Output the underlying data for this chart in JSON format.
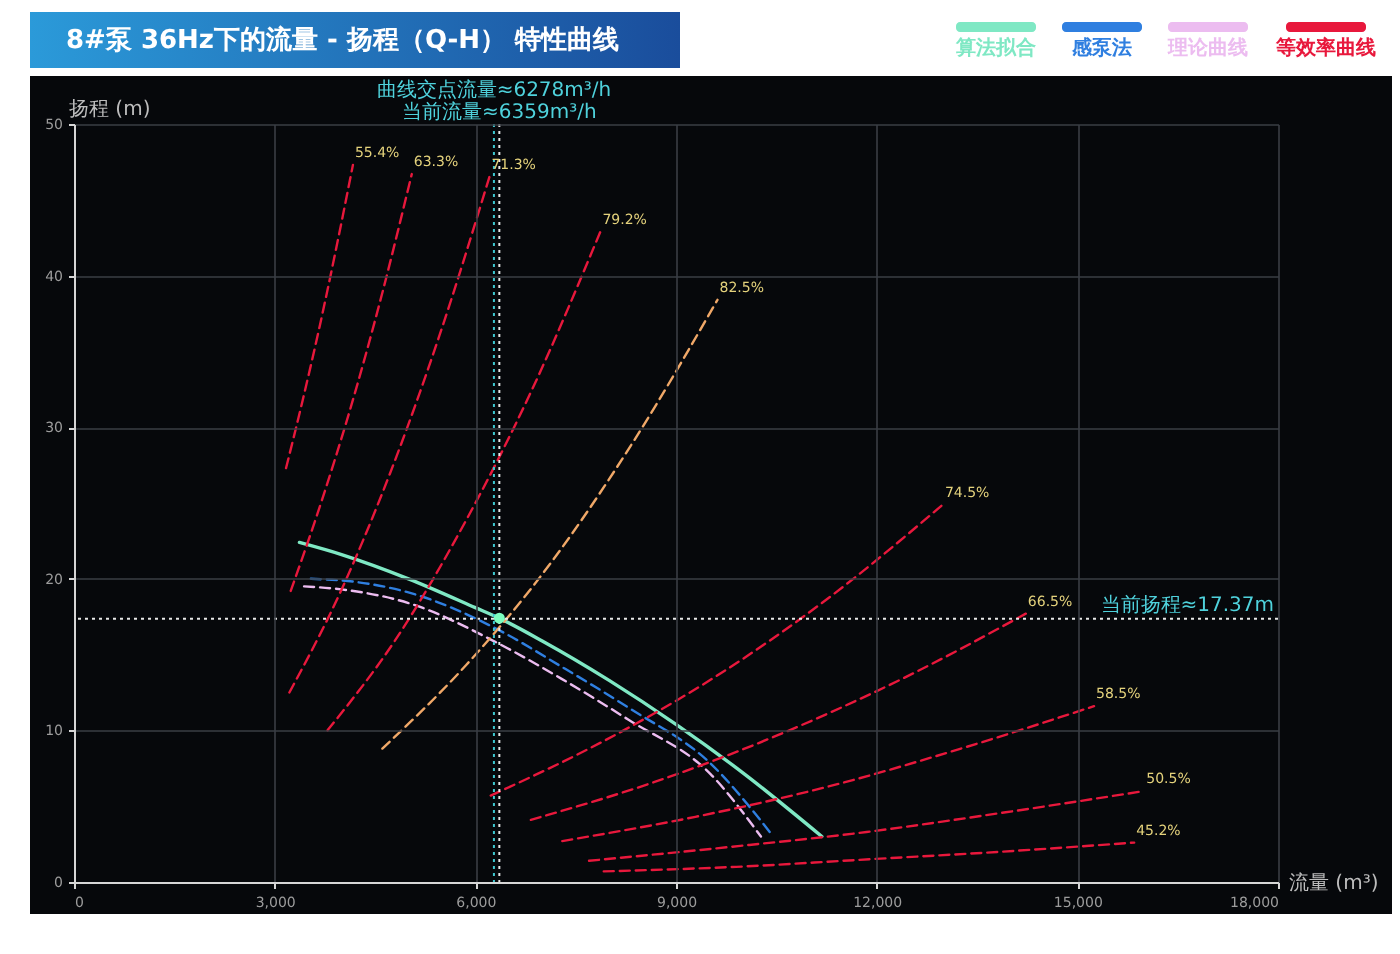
{
  "chart_data": {
    "type": "line",
    "title": "8#泵 36Hz下的流量 - 扬程（Q-H） 特性曲线",
    "xlabel": "流量 (m³)",
    "ylabel": "扬程 (m)",
    "xlim": [
      0,
      18000
    ],
    "xticks": [
      0,
      {
        "value": 3000,
        "label": "3,000"
      },
      {
        "value": 6000,
        "label": "6,000"
      },
      {
        "value": 9000,
        "label": "9,000"
      },
      {
        "value": 12000,
        "label": "12,000"
      },
      {
        "value": 15000,
        "label": "15,000"
      },
      {
        "value": 18000,
        "label": "18,000"
      }
    ],
    "ylim": [
      0,
      50
    ],
    "yticks": [
      0,
      10,
      20,
      30,
      40,
      50
    ],
    "grid": true,
    "legend": "top right",
    "series": [
      {
        "name": "算法拟合",
        "color": "#7fe8c4",
        "line_style": "solid",
        "x": [
          3370,
          4000,
          5000,
          6000,
          6359,
          7000,
          8000,
          9000,
          10000,
          11180
        ],
        "values": [
          22.4,
          21.6,
          20.0,
          18.1,
          17.4,
          15.9,
          13.3,
          10.4,
          7.2,
          3.0
        ]
      },
      {
        "name": "感泵法",
        "color": "#2f7fe0",
        "line_style": "dashed",
        "x": [
          3540,
          4200,
          5000,
          6359,
          7290,
          8290,
          9520,
          10420
        ],
        "values": [
          20.0,
          19.8,
          19.1,
          16.6,
          14.2,
          11.5,
          7.8,
          3.2
        ]
      },
      {
        "name": "理论曲线",
        "color": "#ecbcf0",
        "line_style": "dashed",
        "x": [
          3440,
          4000,
          5000,
          6359,
          7290,
          8290,
          9520,
          10270
        ],
        "values": [
          19.5,
          19.3,
          18.4,
          15.7,
          13.4,
          10.7,
          7.1,
          3.0
        ]
      },
      {
        "name": "等效率曲线",
        "color": "#e8183c",
        "line_style": "dashed",
        "x": [
          3170,
          3420,
          3670,
          3920,
          4170
        ],
        "values": [
          27.3,
          31.8,
          36.6,
          41.8,
          47.3
        ]
      },
      {
        "color": "#e8183c",
        "line_style": "dashed",
        "x": [
          3240,
          3700,
          4150,
          4600,
          5050
        ],
        "values": [
          19.2,
          25.1,
          31.5,
          38.7,
          46.7
        ]
      },
      {
        "color": "#e8183c",
        "line_style": "dashed",
        "x": [
          3220,
          3970,
          4720,
          5460,
          6210
        ],
        "values": [
          12.5,
          19.0,
          26.9,
          36.0,
          46.5
        ]
      },
      {
        "color": "#e8183c",
        "line_style": "dashed",
        "x": [
          3790,
          4810,
          5830,
          6850,
          7870
        ],
        "values": [
          10.0,
          16.0,
          23.6,
          32.5,
          42.9
        ]
      },
      {
        "color": "#e8183c",
        "line_style": "dashed",
        "x": [
          6230,
          7920,
          9610,
          11300,
          12990
        ],
        "values": [
          5.7,
          9.3,
          13.6,
          18.8,
          24.9
        ]
      },
      {
        "color": "#e8183c",
        "line_style": "dashed",
        "x": [
          6830,
          8680,
          10530,
          12380,
          14230
        ],
        "values": [
          4.1,
          6.6,
          9.7,
          13.4,
          17.7
        ]
      },
      {
        "color": "#e8183c",
        "line_style": "dashed",
        "x": [
          7300,
          9290,
          11280,
          13260,
          15250
        ],
        "values": [
          2.7,
          4.3,
          6.3,
          8.8,
          11.6
        ]
      },
      {
        "color": "#e8183c",
        "line_style": "dashed",
        "x": [
          7700,
          9780,
          11850,
          13930,
          16000
        ],
        "values": [
          1.4,
          2.3,
          3.3,
          4.6,
          6.0
        ]
      },
      {
        "color": "#e8183c",
        "line_style": "dashed",
        "x": [
          7920,
          9900,
          11890,
          13870,
          15850
        ],
        "values": [
          0.7,
          1.0,
          1.5,
          2.0,
          2.6
        ]
      },
      {
        "color": "#f0a868",
        "line_style": "dashed",
        "x": [
          4610,
          5860,
          7120,
          8370,
          9620
        ],
        "values": [
          8.8,
          14.3,
          21.0,
          29.1,
          38.4
        ]
      },
      {
        "type": "scatter",
        "color": "#7dffc0",
        "marker": "circle",
        "x": [
          6359
        ],
        "values": [
          17.4
        ]
      }
    ],
    "ref_lines": [
      {
        "axis": "x",
        "value": 6278,
        "label": "曲线交点流量≈6278m³/h",
        "color": "#3fc8d0",
        "line_style": "dotted"
      },
      {
        "axis": "x",
        "value": 6359,
        "label": "当前流量≈6359m³/h",
        "color": "#e8e8e8",
        "line_style": "dotted"
      },
      {
        "axis": "y",
        "value": 17.37,
        "label": "当前扬程≈17.37m",
        "color": "#e8e8e8",
        "line_style": "dotted"
      }
    ],
    "annotations": [
      {
        "text": "55.4%",
        "x": 4170,
        "y": 47.3
      },
      {
        "text": "63.3%",
        "x": 5050,
        "y": 46.7
      },
      {
        "text": "71.3%",
        "x": 6210,
        "y": 46.5
      },
      {
        "text": "79.2%",
        "x": 7870,
        "y": 42.9
      },
      {
        "text": "82.5%",
        "x": 9620,
        "y": 38.4
      },
      {
        "text": "74.5%",
        "x": 12990,
        "y": 24.9
      },
      {
        "text": "66.5%",
        "x": 14230,
        "y": 17.7
      },
      {
        "text": "58.5%",
        "x": 15250,
        "y": 11.6
      },
      {
        "text": "50.5%",
        "x": 16000,
        "y": 6.0
      },
      {
        "text": "45.2%",
        "x": 15850,
        "y": 2.6
      }
    ]
  }
}
